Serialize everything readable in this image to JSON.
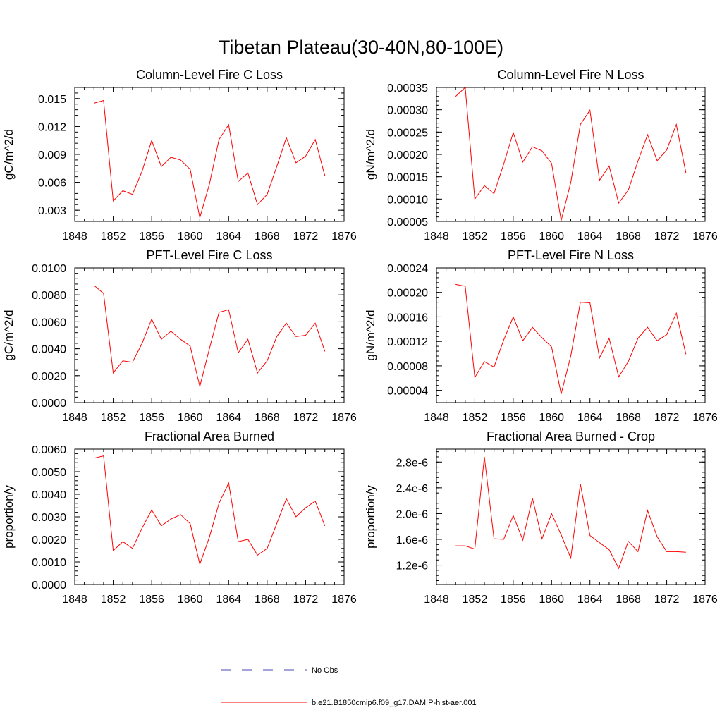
{
  "figure_title": "Tibetan Plateau(30-40N,80-100E)",
  "legend": {
    "items": [
      {
        "label": "No Obs",
        "color": "#4a4ab0",
        "dashed": true
      },
      {
        "label": "b.e21.B1850cmip6.f09_g17.DAMIP-hist-aer.001",
        "color": "#ff0000",
        "dashed": false
      }
    ]
  },
  "chart_data": [
    {
      "type": "line",
      "title": "Column-Level Fire C Loss",
      "ylabel": "gC/m^2/d",
      "xlim": [
        1848,
        1876
      ],
      "x_ticks": [
        "1848",
        "1852",
        "1856",
        "1860",
        "1864",
        "1868",
        "1872",
        "1876"
      ],
      "ylim": [
        0.0018,
        0.0162
      ],
      "y_ticks": [
        0.003,
        0.006,
        0.009,
        0.012,
        0.015
      ],
      "y_tick_labels": [
        "0.003",
        "0.006",
        "0.009",
        "0.012",
        "0.015"
      ],
      "x": [
        1850,
        1851,
        1852,
        1853,
        1854,
        1855,
        1856,
        1857,
        1858,
        1859,
        1860,
        1861,
        1862,
        1863,
        1864,
        1865,
        1866,
        1867,
        1868,
        1869,
        1870,
        1871,
        1872,
        1873,
        1874
      ],
      "series": [
        {
          "color": "#ff0000",
          "values": [
            0.0145,
            0.0148,
            0.004,
            0.0051,
            0.0047,
            0.0072,
            0.0105,
            0.0077,
            0.0087,
            0.0084,
            0.0074,
            0.0022,
            0.0058,
            0.0106,
            0.0122,
            0.0061,
            0.007,
            0.0036,
            0.0047,
            0.0077,
            0.0108,
            0.0081,
            0.0088,
            0.0106,
            0.0067
          ]
        }
      ]
    },
    {
      "type": "line",
      "title": "Column-Level Fire N Loss",
      "ylabel": "gN/m^2/d",
      "xlim": [
        1848,
        1876
      ],
      "x_ticks": [
        "1848",
        "1852",
        "1856",
        "1860",
        "1864",
        "1868",
        "1872",
        "1876"
      ],
      "ylim": [
        5e-05,
        0.00035
      ],
      "y_ticks": [
        5e-05,
        0.0001,
        0.00015,
        0.0002,
        0.00025,
        0.0003,
        0.00035
      ],
      "y_tick_labels": [
        "0.00005",
        "0.00010",
        "0.00015",
        "0.00020",
        "0.00025",
        "0.00030",
        "0.00035"
      ],
      "x": [
        1850,
        1851,
        1852,
        1853,
        1854,
        1855,
        1856,
        1857,
        1858,
        1859,
        1860,
        1861,
        1862,
        1863,
        1864,
        1865,
        1866,
        1867,
        1868,
        1869,
        1870,
        1871,
        1872,
        1873,
        1874
      ],
      "series": [
        {
          "color": "#ff0000",
          "values": [
            0.00033,
            0.00035,
            0.0001,
            0.00013,
            0.000112,
            0.000178,
            0.000249,
            0.000183,
            0.000217,
            0.000208,
            0.00018,
            5.2e-05,
            0.000137,
            0.000267,
            0.000299,
            0.000142,
            0.000174,
            9.1e-05,
            0.00012,
            0.000185,
            0.000244,
            0.000186,
            0.00021,
            0.000267,
            0.000159
          ]
        }
      ]
    },
    {
      "type": "line",
      "title": "PFT-Level Fire C Loss",
      "ylabel": "gC/m^2/d",
      "xlim": [
        1848,
        1876
      ],
      "x_ticks": [
        "1848",
        "1852",
        "1856",
        "1860",
        "1864",
        "1868",
        "1872",
        "1876"
      ],
      "ylim": [
        0,
        0.01
      ],
      "y_ticks": [
        0,
        0.002,
        0.004,
        0.006,
        0.008,
        0.01
      ],
      "y_tick_labels": [
        "0.0000",
        "0.0020",
        "0.0040",
        "0.0060",
        "0.0080",
        "0.0100"
      ],
      "x": [
        1850,
        1851,
        1852,
        1853,
        1854,
        1855,
        1856,
        1857,
        1858,
        1859,
        1860,
        1861,
        1862,
        1863,
        1864,
        1865,
        1866,
        1867,
        1868,
        1869,
        1870,
        1871,
        1872,
        1873,
        1874
      ],
      "series": [
        {
          "color": "#ff0000",
          "values": [
            0.0087,
            0.0081,
            0.0022,
            0.0031,
            0.003,
            0.0044,
            0.0062,
            0.0047,
            0.0053,
            0.0047,
            0.0042,
            0.0012,
            0.004,
            0.0067,
            0.0069,
            0.0037,
            0.0047,
            0.0022,
            0.0031,
            0.0049,
            0.0059,
            0.0049,
            0.005,
            0.0059,
            0.0038
          ]
        }
      ]
    },
    {
      "type": "line",
      "title": "PFT-Level Fire N Loss",
      "ylabel": "gN/m^2/d",
      "xlim": [
        1848,
        1876
      ],
      "x_ticks": [
        "1848",
        "1852",
        "1856",
        "1860",
        "1864",
        "1868",
        "1872",
        "1876"
      ],
      "ylim": [
        2e-05,
        0.00024
      ],
      "y_ticks": [
        4e-05,
        8e-05,
        0.00012,
        0.00016,
        0.0002,
        0.00024
      ],
      "y_tick_labels": [
        "0.00004",
        "0.00008",
        "0.00012",
        "0.00016",
        "0.00020",
        "0.00024"
      ],
      "x": [
        1850,
        1851,
        1852,
        1853,
        1854,
        1855,
        1856,
        1857,
        1858,
        1859,
        1860,
        1861,
        1862,
        1863,
        1864,
        1865,
        1866,
        1867,
        1868,
        1869,
        1870,
        1871,
        1872,
        1873,
        1874
      ],
      "series": [
        {
          "color": "#ff0000",
          "values": [
            0.000213,
            0.00021,
            6.1e-05,
            8.7e-05,
            7.8e-05,
            0.000122,
            0.00016,
            0.000121,
            0.000143,
            0.000126,
            0.000111,
            3.4e-05,
            9.6e-05,
            0.000184,
            0.000183,
            9.3e-05,
            0.000125,
            6.2e-05,
            8.7e-05,
            0.000125,
            0.000143,
            0.000121,
            0.000131,
            0.000166,
            9.9e-05
          ]
        }
      ]
    },
    {
      "type": "line",
      "title": "Fractional Area Burned",
      "ylabel": "proportion/y",
      "xlim": [
        1848,
        1876
      ],
      "x_ticks": [
        "1848",
        "1852",
        "1856",
        "1860",
        "1864",
        "1868",
        "1872",
        "1876"
      ],
      "ylim": [
        0,
        0.006
      ],
      "y_ticks": [
        0,
        0.001,
        0.002,
        0.003,
        0.004,
        0.005,
        0.006
      ],
      "y_tick_labels": [
        "0.0000",
        "0.0010",
        "0.0020",
        "0.0030",
        "0.0040",
        "0.0050",
        "0.0060"
      ],
      "x": [
        1850,
        1851,
        1852,
        1853,
        1854,
        1855,
        1856,
        1857,
        1858,
        1859,
        1860,
        1861,
        1862,
        1863,
        1864,
        1865,
        1866,
        1867,
        1868,
        1869,
        1870,
        1871,
        1872,
        1873,
        1874
      ],
      "series": [
        {
          "color": "#ff0000",
          "values": [
            0.0056,
            0.0057,
            0.0015,
            0.0019,
            0.0016,
            0.0025,
            0.0033,
            0.0026,
            0.0029,
            0.0031,
            0.0027,
            0.0009,
            0.0021,
            0.0036,
            0.0045,
            0.0019,
            0.002,
            0.0013,
            0.0016,
            0.0027,
            0.0038,
            0.003,
            0.0034,
            0.0037,
            0.0026
          ]
        }
      ]
    },
    {
      "type": "line",
      "title": "Fractional Area Burned - Crop",
      "ylabel": "proportion/y",
      "xlim": [
        1848,
        1876
      ],
      "x_ticks": [
        "1848",
        "1852",
        "1856",
        "1860",
        "1864",
        "1868",
        "1872",
        "1876"
      ],
      "ylim": [
        9e-07,
        3e-06
      ],
      "y_ticks": [
        1.2e-06,
        1.6e-06,
        2e-06,
        2.4e-06,
        2.8e-06
      ],
      "y_tick_labels": [
        "1.2e-6",
        "1.6e-6",
        "2.0e-6",
        "2.4e-6",
        "2.8e-6"
      ],
      "x": [
        1850,
        1851,
        1852,
        1853,
        1854,
        1855,
        1856,
        1857,
        1858,
        1859,
        1860,
        1861,
        1862,
        1863,
        1864,
        1865,
        1866,
        1867,
        1868,
        1869,
        1870,
        1871,
        1872,
        1873,
        1874
      ],
      "series": [
        {
          "color": "#ff0000",
          "values": [
            1.5e-06,
            1.5e-06,
            1.45e-06,
            2.88e-06,
            1.61e-06,
            1.6e-06,
            1.97e-06,
            1.59e-06,
            2.24e-06,
            1.61e-06,
            2e-06,
            1.67e-06,
            1.31e-06,
            2.46e-06,
            1.66e-06,
            1.55e-06,
            1.44e-06,
            1.15e-06,
            1.57e-06,
            1.41e-06,
            2.05e-06,
            1.64e-06,
            1.41e-06,
            1.41e-06,
            1.4e-06
          ]
        }
      ]
    }
  ]
}
